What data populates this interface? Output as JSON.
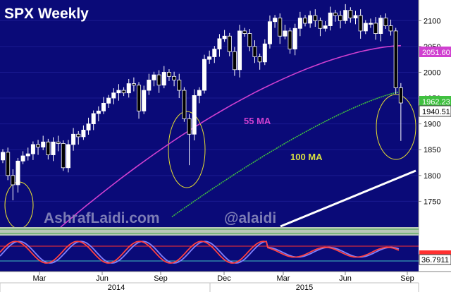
{
  "chart_data": [
    {
      "type": "candlestick",
      "title": "SPX Weekly",
      "watermarks": [
        "AshrafLaidi.com",
        "@alaidi"
      ],
      "annotations": {
        "ma55_label": "55 MA",
        "ma100_label": "100 MA"
      },
      "ylim": [
        1700,
        2140
      ],
      "y_ticks": [
        "1750",
        "1800",
        "1850",
        "1900",
        "1950",
        "2000",
        "2050",
        "2100"
      ],
      "x_tick_labels": [
        "Mar",
        "Jun",
        "Sep",
        "Dec",
        "Mar",
        "Jun",
        "Sep"
      ],
      "year_labels": [
        "2014",
        "2015"
      ],
      "price_tags": [
        "2051.60",
        "1962.23",
        "1940.51"
      ],
      "series": [
        {
          "name": "55 MA",
          "color": "#d040d0"
        },
        {
          "name": "100 MA",
          "color": "#40c040"
        }
      ],
      "closes": [
        1845,
        1800,
        1782,
        1828,
        1838,
        1842,
        1860,
        1855,
        1865,
        1840,
        1865,
        1862,
        1815,
        1860,
        1880,
        1875,
        1888,
        1900,
        1920,
        1925,
        1940,
        1950,
        1960,
        1965,
        1960,
        1978,
        1975,
        1925,
        1965,
        1985,
        1995,
        1975,
        2000,
        1992,
        1985,
        1965,
        1910,
        1880,
        1955,
        1965,
        2025,
        2030,
        2045,
        2065,
        2070,
        2040,
        2005,
        2080,
        2075,
        2050,
        2030,
        2020,
        2055,
        2098,
        2105,
        2070,
        2080,
        2045,
        2085,
        2105,
        2095,
        2110,
        2100,
        2085,
        2090,
        2115,
        2110,
        2100,
        2120,
        2105,
        2110,
        2080,
        2095,
        2095,
        2075,
        2105,
        2090,
        2080,
        1970,
        1940.51
      ],
      "ma55_endpoints": [
        1700,
        2051.6
      ],
      "ma100_endpoints": [
        1720,
        1962.23
      ]
    },
    {
      "type": "line",
      "title": "",
      "ylim": [
        0,
        100
      ],
      "last_value_label": "36.7911",
      "series": [
        {
          "name": "",
          "color": "#ff4040"
        },
        {
          "name": "",
          "color": "#8080ff"
        }
      ]
    }
  ]
}
